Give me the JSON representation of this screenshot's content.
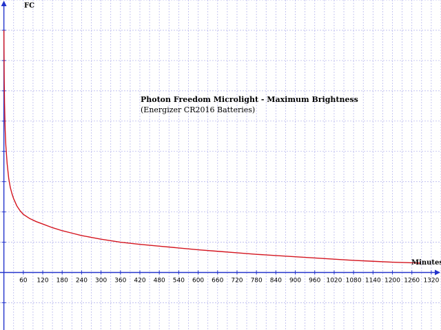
{
  "chart_data": {
    "type": "line",
    "title": "Photon Freedom Microlight - Maximum Brightness",
    "subtitle": "(Energizer CR2016 Batteries)",
    "xlabel": "Minutes",
    "ylabel": "FC",
    "xlim": [
      -12,
      1350
    ],
    "ylim": [
      -9.5,
      45
    ],
    "x_ticks": [
      60,
      120,
      180,
      240,
      300,
      360,
      420,
      480,
      540,
      600,
      660,
      720,
      780,
      840,
      900,
      960,
      1020,
      1080,
      1140,
      1200,
      1260,
      1320
    ],
    "y_ticks": [
      -5,
      5,
      10,
      15,
      20,
      25,
      30,
      35,
      40
    ],
    "grid": true,
    "series": [
      {
        "color": "#d4141e",
        "x": [
          0,
          1,
          2,
          4,
          6,
          8,
          10,
          15,
          20,
          25,
          30,
          40,
          50,
          60,
          80,
          100,
          120,
          150,
          180,
          210,
          240,
          270,
          300,
          360,
          420,
          480,
          540,
          600,
          660,
          720,
          780,
          840,
          900,
          960,
          1020,
          1080,
          1140,
          1200,
          1260,
          1285
        ],
        "values": [
          40,
          32,
          28,
          23.5,
          21,
          19.5,
          18,
          15.5,
          14,
          13,
          12.2,
          11,
          10.2,
          9.6,
          8.9,
          8.4,
          8.0,
          7.4,
          6.9,
          6.5,
          6.1,
          5.8,
          5.5,
          5.0,
          4.65,
          4.35,
          4.05,
          3.75,
          3.5,
          3.25,
          3.0,
          2.8,
          2.6,
          2.4,
          2.2,
          2.0,
          1.85,
          1.7,
          1.6,
          1.55
        ]
      }
    ]
  }
}
